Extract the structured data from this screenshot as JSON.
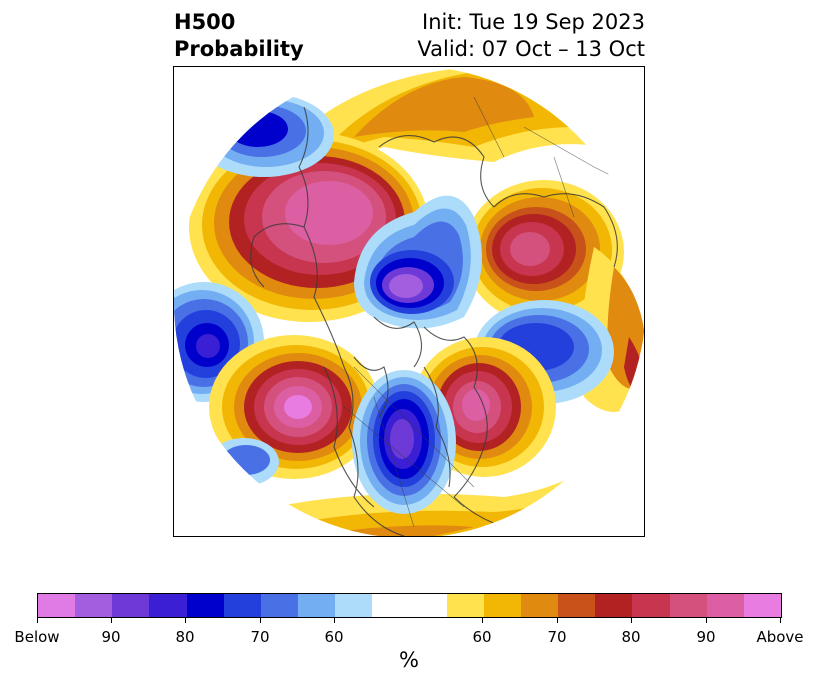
{
  "title": {
    "left_line1": "H500",
    "left_line2": "Probability",
    "right_line1": "Init: Tue 19 Sep 2023",
    "right_line2": "Valid: 07 Oct – 13 Oct"
  },
  "map": {
    "projection": "north-polar-stereographic",
    "coastline_color": "#3a3a3a"
  },
  "colorbar": {
    "colors": [
      "#e07ae5",
      "#a35ee0",
      "#6d3ad8",
      "#3a1fd4",
      "#0000cc",
      "#2440dc",
      "#4a70e6",
      "#74aef2",
      "#acdcfa",
      "#ffffff",
      "#ffe24d",
      "#f2b705",
      "#e08a10",
      "#c8521a",
      "#b22222",
      "#c8354e",
      "#d4517e",
      "#dc5fa4",
      "#e87ce0"
    ],
    "tick_labels": [
      "Below",
      "90",
      "80",
      "70",
      "60",
      "60",
      "70",
      "80",
      "90",
      "Above"
    ],
    "units_label": "%"
  }
}
